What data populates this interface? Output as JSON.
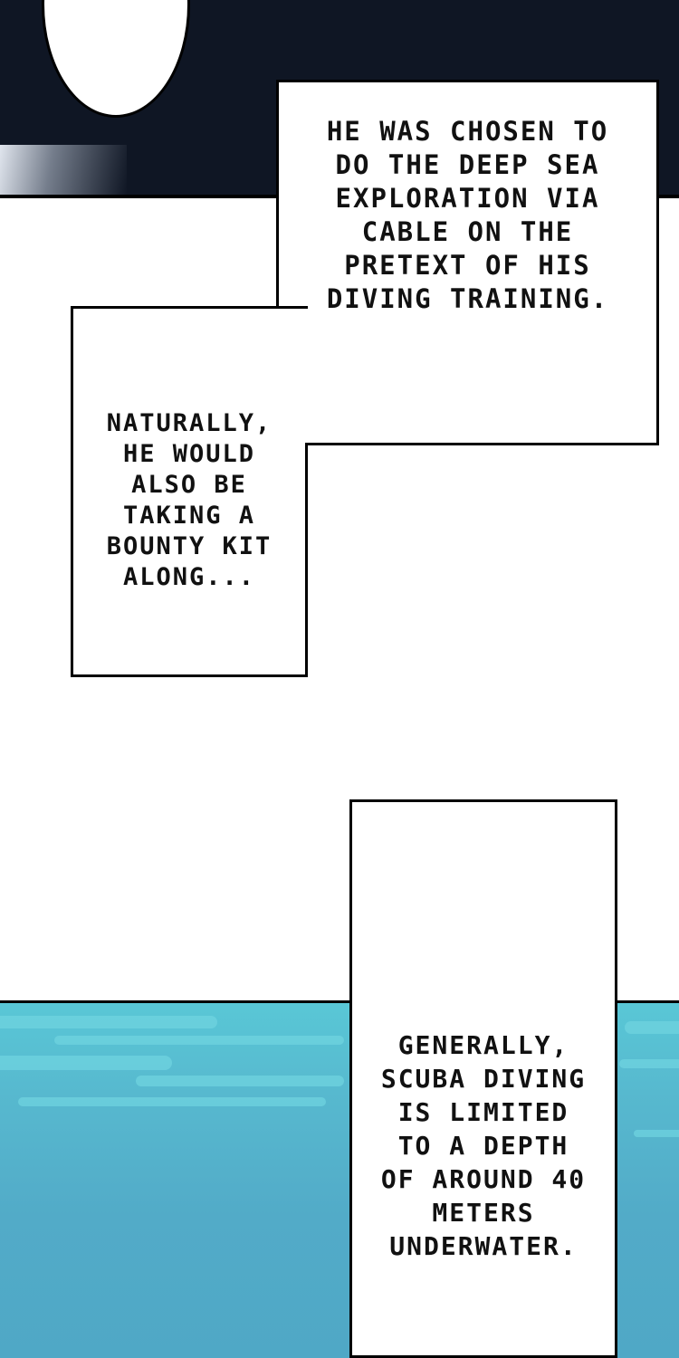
{
  "panels": {
    "top": {
      "color": "#0f1624"
    },
    "sea": {
      "color": "#52abc8",
      "highlight": "#6fd3df"
    }
  },
  "captions": [
    {
      "text": "He was chosen to\ndo the deep sea\nexploration via\ncable on the\npretext of his\ndiving training."
    },
    {
      "text": "Naturally,\nhe would\nalso be\ntaking a\nbounty kit\nalong..."
    },
    {
      "text": "Generally,\nscuba diving\nis limited\nto a depth\nof around 40\nmeters\nunderwater."
    }
  ]
}
